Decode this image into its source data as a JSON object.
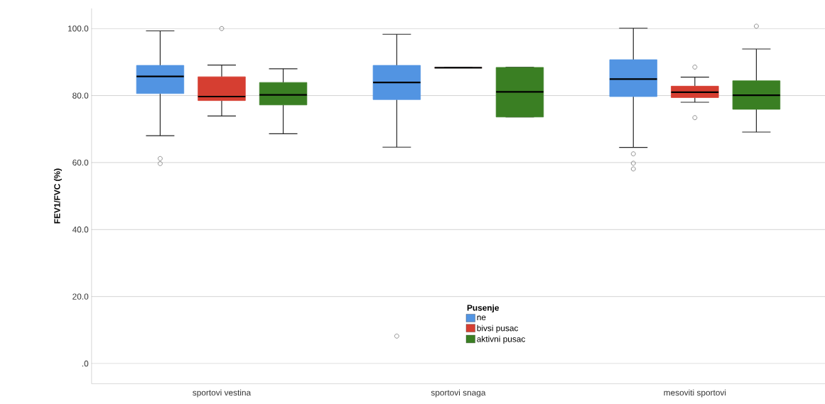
{
  "chart_data": {
    "type": "box",
    "ylabel": "FEV1/FVC  (%)",
    "legend_title": "Pusenje",
    "categories": [
      "sportovi vestina",
      "sportovi snaga",
      "mesoviti sportovi"
    ],
    "series": [
      {
        "name": "ne",
        "color": "#5294e2",
        "boxes": [
          {
            "low": 68.0,
            "q1": 80.6,
            "median": 85.7,
            "q3": 89.0,
            "high": 99.3,
            "outliers": [
              61.2,
              59.7
            ]
          },
          {
            "low": 64.6,
            "q1": 78.8,
            "median": 83.9,
            "q3": 89.0,
            "high": 98.3,
            "outliers": [
              8.2
            ]
          },
          {
            "low": 64.5,
            "q1": 79.7,
            "median": 84.9,
            "q3": 90.7,
            "high": 100.1,
            "outliers": [
              62.6,
              59.8,
              58.1
            ]
          }
        ]
      },
      {
        "name": "bivsi pusac",
        "color": "#d63e31",
        "boxes": [
          {
            "low": 73.9,
            "q1": 78.5,
            "median": 79.7,
            "q3": 85.6,
            "high": 89.1,
            "outliers": [
              100.0
            ]
          },
          {
            "low": 88.3,
            "q1": 88.3,
            "median": 88.3,
            "q3": 88.3,
            "high": 88.3
          },
          {
            "low": 78.0,
            "q1": 79.4,
            "median": 81.0,
            "q3": 82.8,
            "high": 85.5,
            "outliers": [
              88.5,
              73.4
            ]
          }
        ]
      },
      {
        "name": "aktivni pusac",
        "color": "#3a7f23",
        "boxes": [
          {
            "low": 68.6,
            "q1": 77.2,
            "median": 80.2,
            "q3": 83.9,
            "high": 88.0
          },
          {
            "low": 73.6,
            "q1": 73.6,
            "median": 81.1,
            "q3": 88.4,
            "high": 88.4
          },
          {
            "low": 69.1,
            "q1": 75.9,
            "median": 80.1,
            "q3": 84.4,
            "high": 93.9,
            "outliers": [
              100.7
            ]
          }
        ]
      }
    ],
    "ylim": [
      -6,
      106
    ],
    "yticks": [
      {
        "value": 0,
        "label": ".0"
      },
      {
        "value": 20,
        "label": "20.0"
      },
      {
        "value": 40,
        "label": "40.0"
      },
      {
        "value": 60,
        "label": "60.0"
      },
      {
        "value": 80,
        "label": "80.0"
      },
      {
        "value": 100,
        "label": "100.0"
      }
    ],
    "grid": "y",
    "legend": "bottom"
  }
}
